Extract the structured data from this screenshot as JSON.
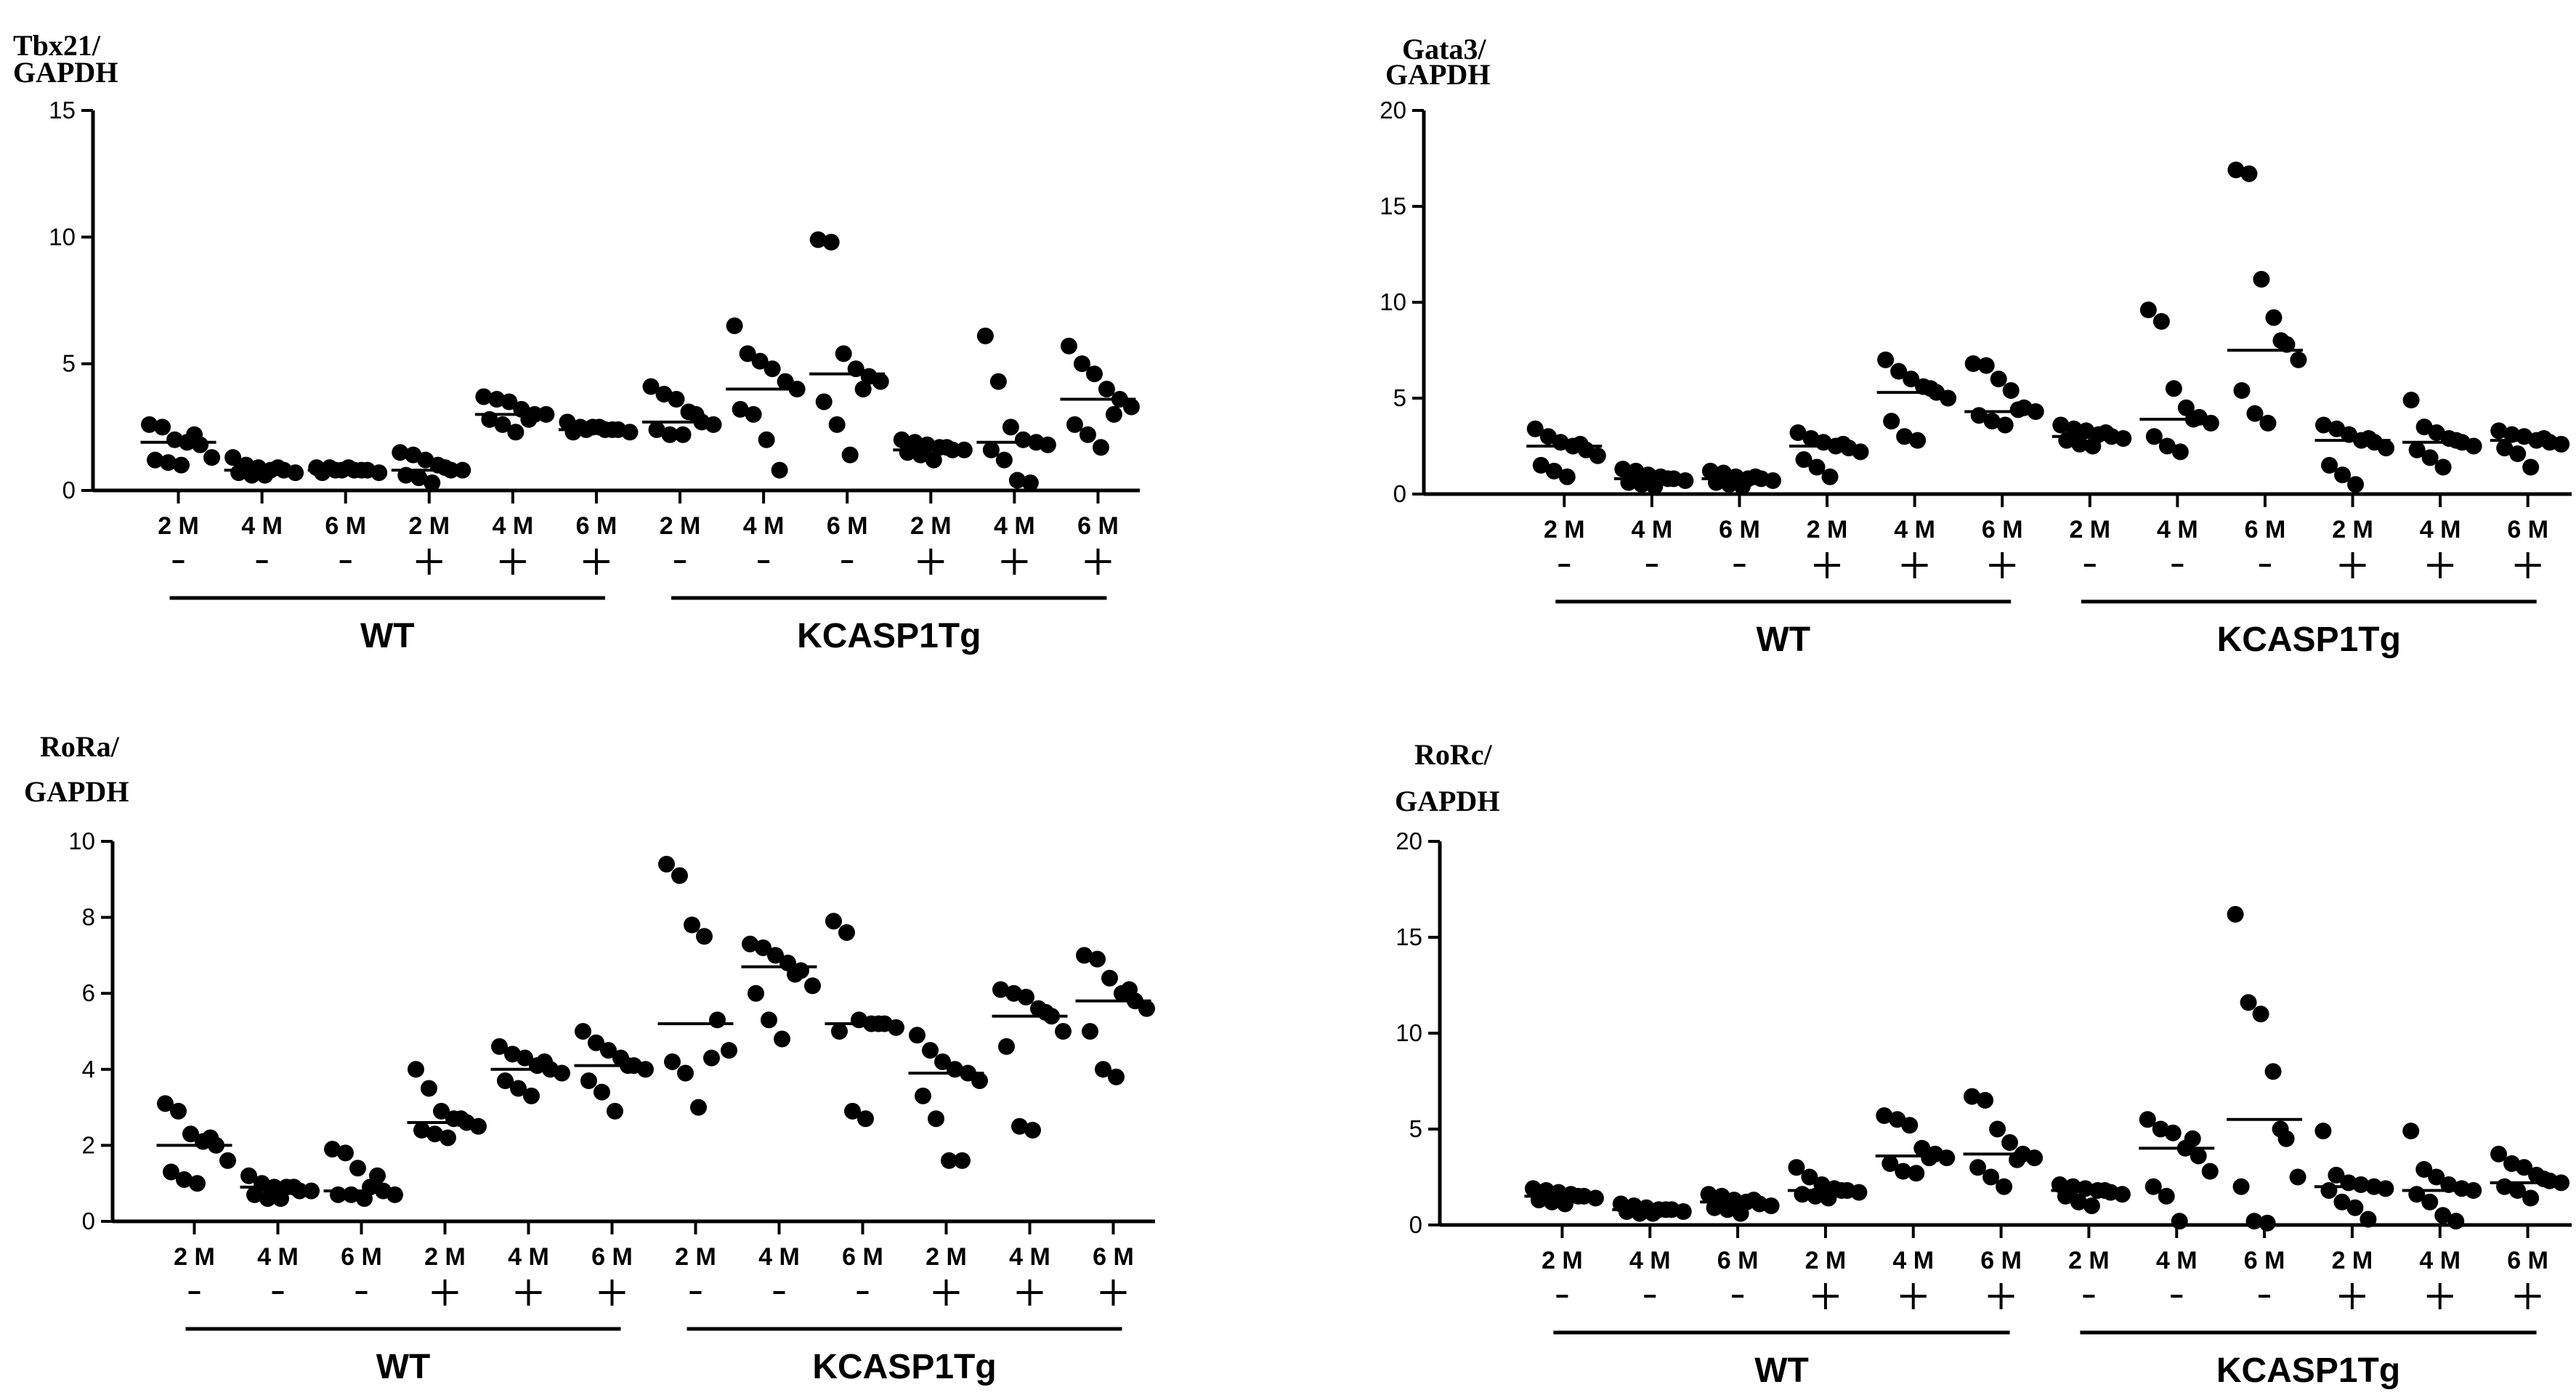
{
  "colors": {
    "ink": "#000000",
    "background": "#ffffff"
  },
  "chart_data": [
    {
      "type": "scatter",
      "id": "tbx21",
      "ylabel_line1": "Tbx21/",
      "ylabel_line2": "GAPDH",
      "ylim": [
        0,
        15
      ],
      "yticks": [
        "0",
        "5",
        "10",
        "15"
      ],
      "categories": [
        "2 M",
        "4 M",
        "6 M",
        "2 M",
        "4 M",
        "6 M",
        "2 M",
        "4 M",
        "6 M",
        "2 M",
        "4 M",
        "6 M"
      ],
      "treatment": [
        "-",
        "-",
        "-",
        "+",
        "+",
        "+",
        "-",
        "-",
        "-",
        "+",
        "+",
        "+"
      ],
      "groups": [
        {
          "label": "WT",
          "start": 0,
          "end": 5
        },
        {
          "label": "KCASP1Tg",
          "start": 6,
          "end": 11
        }
      ],
      "medians": [
        1.9,
        0.8,
        0.8,
        0.8,
        3.0,
        2.4,
        2.7,
        4.0,
        4.6,
        1.6,
        1.9,
        3.6
      ],
      "series": [
        {
          "values": [
            2.6,
            2.5,
            2.0,
            1.9,
            1.8,
            1.3,
            1.2,
            1.1,
            1.0,
            2.2
          ]
        },
        {
          "values": [
            1.3,
            1.0,
            0.9,
            0.8,
            0.8,
            0.7,
            0.7,
            0.6,
            0.6,
            0.9
          ]
        },
        {
          "values": [
            0.9,
            0.9,
            0.8,
            0.8,
            0.8,
            0.7,
            0.7,
            0.8,
            0.9,
            0.8
          ]
        },
        {
          "values": [
            1.5,
            1.4,
            1.2,
            1.0,
            0.8,
            0.8,
            0.6,
            0.5,
            0.3,
            0.9
          ]
        },
        {
          "values": [
            3.7,
            3.6,
            3.5,
            3.2,
            3.0,
            3.0,
            2.8,
            2.6,
            2.3,
            2.8
          ]
        },
        {
          "values": [
            2.7,
            2.5,
            2.5,
            2.4,
            2.4,
            2.3,
            2.3,
            2.4,
            2.5,
            2.4
          ]
        },
        {
          "values": [
            4.1,
            3.8,
            3.6,
            3.1,
            2.7,
            2.6,
            2.4,
            2.2,
            2.2,
            3.0
          ]
        },
        {
          "values": [
            6.5,
            5.4,
            5.1,
            4.8,
            4.3,
            4.0,
            3.2,
            3.0,
            2.0,
            0.8
          ]
        },
        {
          "values": [
            9.9,
            9.8,
            5.4,
            4.8,
            4.5,
            4.3,
            3.5,
            2.6,
            1.4,
            4.0
          ]
        },
        {
          "values": [
            2.0,
            1.9,
            1.8,
            1.7,
            1.6,
            1.6,
            1.5,
            1.4,
            1.2,
            1.7
          ]
        },
        {
          "values": [
            6.1,
            4.3,
            2.5,
            2.0,
            1.9,
            1.8,
            1.6,
            1.2,
            0.4,
            0.3
          ]
        },
        {
          "values": [
            5.7,
            5.0,
            4.6,
            4.0,
            3.6,
            3.3,
            2.6,
            2.2,
            1.7,
            3.0
          ]
        }
      ]
    },
    {
      "type": "scatter",
      "id": "gata3",
      "ylabel_line1": "Gata3/",
      "ylabel_line2": "GAPDH",
      "ylim": [
        0,
        20
      ],
      "yticks": [
        "0",
        "5",
        "10",
        "15",
        "20"
      ],
      "categories": [
        "2 M",
        "4 M",
        "6 M",
        "2 M",
        "4 M",
        "6 M",
        "2 M",
        "4 M",
        "6 M",
        "2 M",
        "4 M",
        "6 M"
      ],
      "treatment": [
        "-",
        "-",
        "-",
        "+",
        "+",
        "+",
        "-",
        "-",
        "-",
        "+",
        "+",
        "+"
      ],
      "groups": [
        {
          "label": "WT",
          "start": 0,
          "end": 5
        },
        {
          "label": "KCASP1Tg",
          "start": 6,
          "end": 11
        }
      ],
      "medians": [
        2.5,
        0.8,
        0.8,
        2.5,
        5.3,
        4.3,
        3.0,
        3.9,
        7.5,
        2.8,
        2.7,
        2.8
      ],
      "series": [
        {
          "values": [
            3.4,
            3.0,
            2.7,
            2.5,
            2.3,
            2.0,
            1.5,
            1.2,
            0.9,
            2.6
          ]
        },
        {
          "values": [
            1.3,
            1.2,
            1.0,
            0.9,
            0.8,
            0.7,
            0.6,
            0.5,
            0.4,
            0.8
          ]
        },
        {
          "values": [
            1.2,
            1.1,
            0.9,
            0.8,
            0.8,
            0.7,
            0.6,
            0.5,
            0.4,
            0.9
          ]
        },
        {
          "values": [
            3.2,
            2.9,
            2.7,
            2.5,
            2.4,
            2.2,
            1.8,
            1.4,
            0.9,
            2.6
          ]
        },
        {
          "values": [
            7.0,
            6.4,
            6.0,
            5.6,
            5.3,
            5.0,
            3.8,
            3.0,
            2.8,
            5.5
          ]
        },
        {
          "values": [
            6.8,
            6.7,
            6.0,
            5.4,
            4.5,
            4.3,
            4.1,
            3.8,
            3.6,
            4.4
          ]
        },
        {
          "values": [
            3.6,
            3.4,
            3.3,
            3.1,
            3.0,
            2.9,
            2.8,
            2.6,
            2.5,
            3.2
          ]
        },
        {
          "values": [
            9.6,
            9.0,
            5.5,
            4.5,
            4.0,
            3.7,
            3.0,
            2.5,
            2.2,
            3.9
          ]
        },
        {
          "values": [
            16.9,
            16.7,
            11.2,
            9.2,
            7.8,
            7.0,
            5.4,
            4.2,
            3.7,
            8.0
          ]
        },
        {
          "values": [
            3.6,
            3.4,
            3.1,
            2.8,
            2.7,
            2.4,
            1.5,
            1.0,
            0.5,
            2.9
          ]
        },
        {
          "values": [
            4.9,
            3.5,
            3.2,
            2.9,
            2.7,
            2.5,
            2.3,
            1.9,
            1.4,
            2.8
          ]
        },
        {
          "values": [
            3.3,
            3.1,
            3.0,
            2.8,
            2.7,
            2.6,
            2.4,
            2.1,
            1.4,
            2.9
          ]
        }
      ]
    },
    {
      "type": "scatter",
      "id": "rora",
      "ylabel_line1": "RoRa/",
      "ylabel_line2": "GAPDH",
      "ylim": [
        0,
        10
      ],
      "yticks": [
        "0",
        "2",
        "4",
        "6",
        "8",
        "10"
      ],
      "categories": [
        "2 M",
        "4 M",
        "6 M",
        "2 M",
        "4 M",
        "6 M",
        "2 M",
        "4 M",
        "6 M",
        "2 M",
        "4 M",
        "6 M"
      ],
      "treatment": [
        "-",
        "-",
        "-",
        "+",
        "+",
        "+",
        "-",
        "-",
        "-",
        "+",
        "+",
        "+"
      ],
      "groups": [
        {
          "label": "WT",
          "start": 0,
          "end": 5
        },
        {
          "label": "KCASP1Tg",
          "start": 6,
          "end": 11
        }
      ],
      "medians": [
        2.0,
        0.9,
        0.8,
        2.6,
        4.0,
        4.1,
        5.2,
        6.7,
        5.2,
        3.9,
        5.4,
        5.8
      ],
      "series": [
        {
          "values": [
            3.1,
            2.9,
            2.3,
            2.1,
            2.0,
            1.6,
            1.3,
            1.1,
            1.0,
            2.2
          ]
        },
        {
          "values": [
            1.2,
            1.0,
            0.9,
            0.9,
            0.8,
            0.8,
            0.7,
            0.6,
            0.6,
            0.9
          ]
        },
        {
          "values": [
            1.9,
            1.8,
            1.4,
            0.9,
            0.8,
            0.7,
            0.7,
            0.7,
            0.6,
            1.2
          ]
        },
        {
          "values": [
            4.0,
            3.5,
            2.9,
            2.7,
            2.6,
            2.5,
            2.4,
            2.3,
            2.2,
            2.7
          ]
        },
        {
          "values": [
            4.6,
            4.4,
            4.3,
            4.1,
            4.0,
            3.9,
            3.7,
            3.5,
            3.3,
            4.2
          ]
        },
        {
          "values": [
            5.0,
            4.7,
            4.5,
            4.3,
            4.1,
            4.0,
            3.7,
            3.4,
            2.9,
            4.1
          ]
        },
        {
          "values": [
            9.4,
            9.1,
            7.8,
            7.5,
            5.3,
            4.5,
            4.2,
            3.9,
            3.0,
            4.3
          ]
        },
        {
          "values": [
            7.3,
            7.2,
            7.0,
            6.8,
            6.6,
            6.2,
            6.0,
            5.3,
            4.8,
            6.5
          ]
        },
        {
          "values": [
            7.9,
            7.6,
            5.3,
            5.2,
            5.2,
            5.1,
            5.0,
            2.9,
            2.7,
            5.2
          ]
        },
        {
          "values": [
            4.9,
            4.5,
            4.2,
            4.0,
            3.9,
            3.7,
            3.3,
            2.7,
            1.6,
            1.6
          ]
        },
        {
          "values": [
            6.1,
            6.0,
            5.9,
            5.6,
            5.4,
            5.0,
            4.6,
            2.5,
            2.4,
            5.5
          ]
        },
        {
          "values": [
            7.0,
            6.9,
            6.4,
            6.0,
            5.8,
            5.6,
            5.0,
            4.0,
            3.8,
            6.1
          ]
        }
      ]
    },
    {
      "type": "scatter",
      "id": "rorc",
      "ylabel_line1": "RoRc/",
      "ylabel_line2": "GAPDH",
      "ylim": [
        0,
        20
      ],
      "yticks": [
        "0",
        "5",
        "10",
        "15",
        "20"
      ],
      "categories": [
        "2 M",
        "4 M",
        "6 M",
        "2 M",
        "4 M",
        "6 M",
        "2 M",
        "4 M",
        "6 M",
        "2 M",
        "4 M",
        "6 M"
      ],
      "treatment": [
        "-",
        "-",
        "-",
        "+",
        "+",
        "+",
        "-",
        "-",
        "-",
        "+",
        "+",
        "+"
      ],
      "groups": [
        {
          "label": "WT",
          "start": 0,
          "end": 5
        },
        {
          "label": "KCASP1Tg",
          "start": 6,
          "end": 11
        }
      ],
      "medians": [
        1.5,
        0.8,
        1.2,
        1.8,
        3.6,
        3.7,
        1.8,
        4.0,
        5.5,
        2.0,
        1.8,
        2.2
      ],
      "series": [
        {
          "values": [
            1.9,
            1.8,
            1.7,
            1.6,
            1.5,
            1.4,
            1.3,
            1.2,
            1.1,
            1.5
          ]
        },
        {
          "values": [
            1.1,
            1.0,
            0.9,
            0.8,
            0.8,
            0.7,
            0.7,
            0.6,
            0.6,
            0.8
          ]
        },
        {
          "values": [
            1.6,
            1.5,
            1.3,
            1.2,
            1.1,
            1.0,
            0.9,
            0.8,
            0.6,
            1.3
          ]
        },
        {
          "values": [
            3.0,
            2.5,
            2.1,
            1.9,
            1.8,
            1.7,
            1.6,
            1.5,
            1.4,
            1.8
          ]
        },
        {
          "values": [
            5.7,
            5.5,
            5.2,
            4.0,
            3.7,
            3.5,
            3.2,
            2.8,
            2.7,
            3.5
          ]
        },
        {
          "values": [
            6.7,
            6.5,
            5.0,
            4.3,
            3.7,
            3.5,
            3.0,
            2.5,
            2.0,
            3.4
          ]
        },
        {
          "values": [
            2.1,
            2.0,
            1.9,
            1.8,
            1.7,
            1.6,
            1.5,
            1.2,
            1.0,
            1.8
          ]
        },
        {
          "values": [
            5.5,
            5.0,
            4.8,
            4.0,
            3.6,
            2.8,
            2.0,
            1.5,
            0.2,
            4.5
          ]
        },
        {
          "values": [
            16.2,
            11.6,
            11.0,
            8.0,
            4.5,
            2.5,
            2.0,
            0.2,
            0.1,
            5.0
          ]
        },
        {
          "values": [
            4.9,
            2.6,
            2.2,
            2.1,
            2.0,
            1.9,
            1.8,
            1.2,
            0.9,
            0.3
          ]
        },
        {
          "values": [
            4.9,
            2.9,
            2.5,
            2.1,
            1.9,
            1.8,
            1.6,
            1.2,
            0.5,
            0.2
          ]
        },
        {
          "values": [
            3.7,
            3.2,
            3.0,
            2.6,
            2.3,
            2.2,
            2.0,
            1.8,
            1.4,
            2.4
          ]
        }
      ]
    }
  ]
}
